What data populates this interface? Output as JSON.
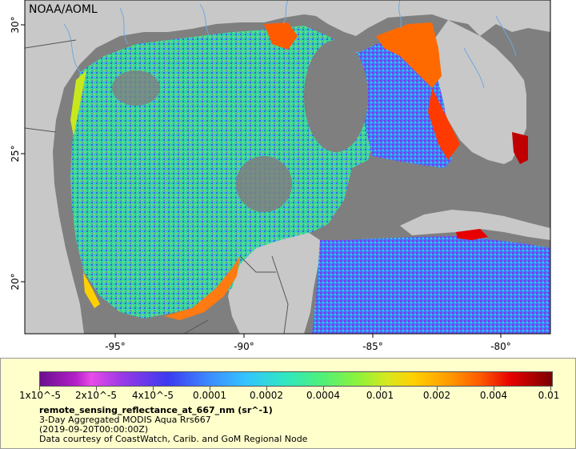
{
  "map": {
    "provider_label": "NOAA/AOML",
    "lat_ticks": [
      "30°",
      "25°",
      "20°"
    ],
    "lon_ticks": [
      "-95°",
      "-90°",
      "-85°",
      "-80°"
    ],
    "colors": {
      "ocean_nodata": "#7f7f7f",
      "land": "#c8c8c8",
      "rivers": "#6fa8dc",
      "borders": "#555555"
    }
  },
  "legend": {
    "colorbar_labels": [
      "1x10^-5",
      "2x10^-5",
      "4x10^-5",
      "0.0001",
      "0.0002",
      "0.0004",
      "0.001",
      "0.002",
      "0.004",
      "0.01"
    ],
    "title": "remote_sensing_reflectance_at_667_nm (sr^-1)",
    "subtitle": "3-Day Aggregated MODIS Aqua Rrs667",
    "date": "(2019-09-20T00:00:00Z)",
    "credit": "Data courtesy of CoastWatch, Carib. and GoM Regional Node",
    "colors": {
      "panel_bg": "#ffffcc",
      "colorbar_low": "#6a0f8f",
      "colorbar_mid": "#2fe8c0",
      "colorbar_high": "#7a0000"
    }
  }
}
